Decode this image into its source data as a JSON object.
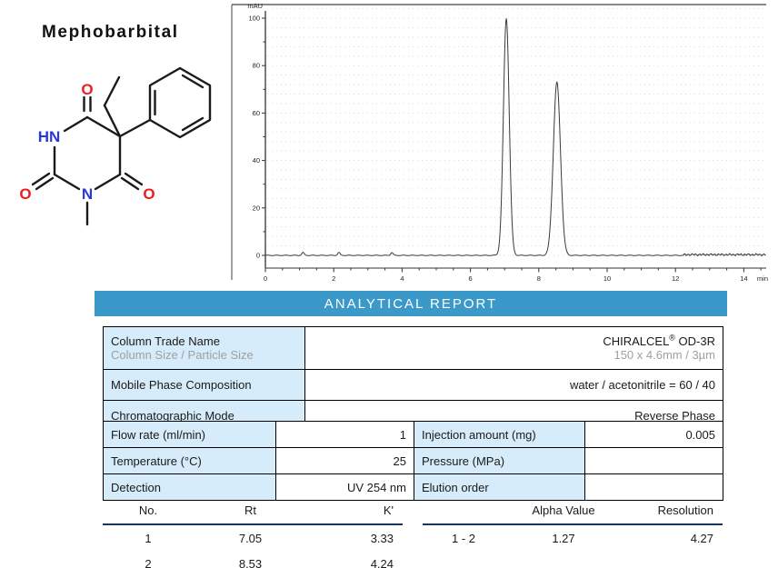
{
  "compound": {
    "name": "Mephobarbital",
    "atoms": {
      "hn": "HN",
      "n": "N",
      "o_top": "O",
      "o_left": "O",
      "o_right": "O"
    }
  },
  "report": {
    "title": "ANALYTICAL REPORT",
    "colors": {
      "header_bg": "#3a99c9",
      "header_text": "#ffffff",
      "label_cell_bg": "#d6ecfa",
      "muted_text": "#a0a0a0",
      "rule": "#17365d"
    }
  },
  "chart_data": {
    "type": "line",
    "title": "",
    "xlabel": "min",
    "ylabel": "mAU",
    "xlim": [
      0,
      14.65
    ],
    "ylim": [
      0,
      100
    ],
    "x_major_ticks": [
      0,
      2,
      4,
      6,
      8,
      10,
      12,
      14
    ],
    "x_minor_step_min": 0.5,
    "y_major_ticks": [
      0,
      20,
      40,
      60,
      80,
      100
    ],
    "y_minor_step": 10,
    "grid": "dotted-horizontal",
    "legend": "none",
    "series": [
      {
        "name": "UV 254 nm trace",
        "baseline_mAU": 0,
        "peaks": [
          {
            "no": 1,
            "rt_min": 7.05,
            "height_mAU": 100,
            "sigma_min": 0.085
          },
          {
            "no": 2,
            "rt_min": 8.53,
            "height_mAU": 73,
            "sigma_min": 0.105
          }
        ],
        "minor_bumps_min": [
          1.1,
          2.15,
          3.7
        ]
      }
    ]
  },
  "column_table": {
    "rows": [
      {
        "label": "Column Trade Name",
        "sublabel": "Column Size / Particle Size",
        "value_main": "CHIRALCEL",
        "value_reg": "®",
        "value_tail": " OD-3R",
        "subvalue": "150 x 4.6mm / 3µm"
      },
      {
        "label": "Mobile Phase Composition",
        "value": "water / acetonitrile = 60 / 40"
      },
      {
        "label": "Chromatographic Mode",
        "value": "Reverse Phase"
      }
    ]
  },
  "conditions_table": {
    "rows": [
      {
        "label_left": "Flow rate (ml/min)",
        "value_left": "1",
        "label_right": "Injection amount (mg)",
        "value_right": "0.005"
      },
      {
        "label_left": "Temperature (°C)",
        "value_left": "25",
        "label_right": "Pressure (MPa)",
        "value_right": ""
      },
      {
        "label_left": "Detection",
        "value_left": "UV 254 nm",
        "label_right": "Elution order",
        "value_right": ""
      }
    ]
  },
  "results_table": {
    "headers": {
      "no": "No.",
      "rt": "Rt",
      "k": "K'"
    },
    "rows": [
      {
        "no": "1",
        "rt": "7.05",
        "k": "3.33"
      },
      {
        "no": "2",
        "rt": "8.53",
        "k": "4.24"
      }
    ],
    "pair_headers": {
      "alpha": "Alpha Value",
      "resolution": "Resolution"
    },
    "pair_rows": [
      {
        "pair": "1 - 2",
        "alpha": "1.27",
        "resolution": "4.27"
      }
    ]
  }
}
